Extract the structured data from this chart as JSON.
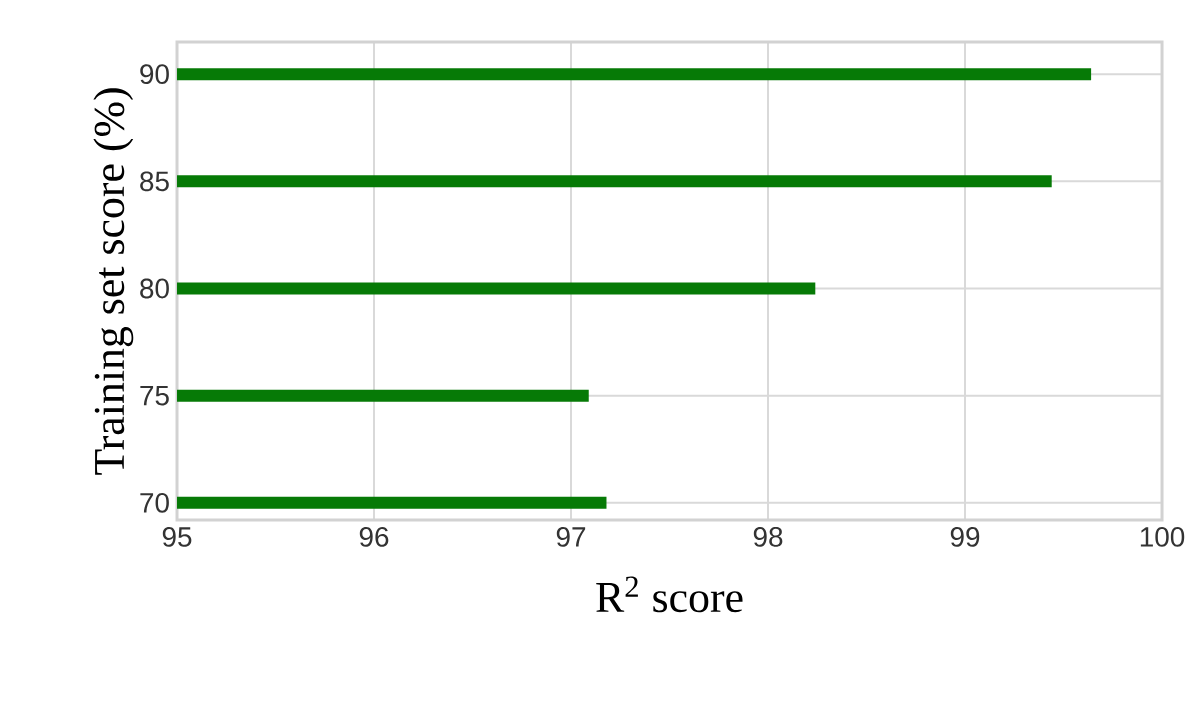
{
  "chart_data": {
    "type": "bar",
    "orientation": "horizontal",
    "categories": [
      "90",
      "85",
      "80",
      "75",
      "70"
    ],
    "values": [
      99.64,
      99.44,
      98.24,
      97.09,
      97.18
    ],
    "color": "#067a06",
    "xlim": [
      95,
      100
    ],
    "xticks": [
      95,
      96,
      97,
      98,
      99,
      100
    ],
    "xlabel": "R$^{2}$ score",
    "ylabel": "Training set score (%)",
    "grid": true
  }
}
